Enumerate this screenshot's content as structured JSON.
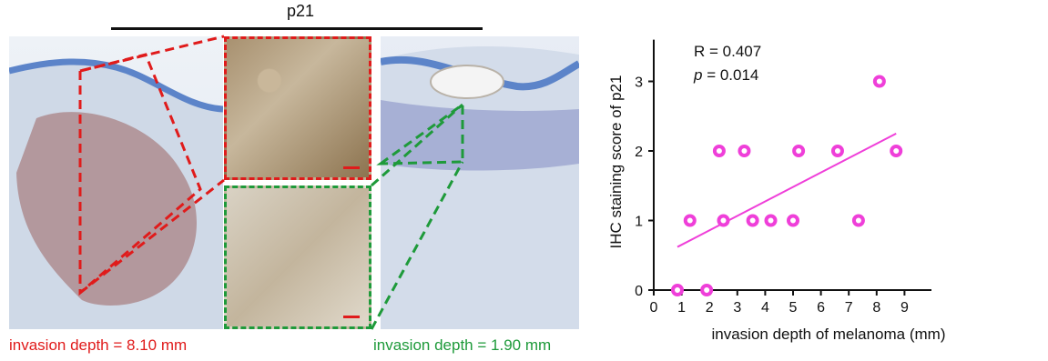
{
  "figure": {
    "marker": "p21",
    "caption_left": "invasion depth = 8.10 mm",
    "caption_right": "invasion depth = 1.90 mm",
    "colors": {
      "red": "#e01b1b",
      "green": "#1e9a3a",
      "series": "#ef3fd9"
    }
  },
  "chart_data": {
    "type": "scatter",
    "xlabel": "invasion depth of melanoma (mm)",
    "ylabel": "IHC staining score of p21",
    "xlim": [
      0,
      10
    ],
    "ylim": [
      0,
      3.6
    ],
    "xticks": [
      0,
      1,
      2,
      3,
      4,
      5,
      6,
      7,
      8,
      9
    ],
    "yticks": [
      0,
      1,
      2,
      3
    ],
    "grid": false,
    "annotations": {
      "r_label": "R = 0.407",
      "p_label_italic": "p",
      "p_label_value": " = 0.014"
    },
    "points": [
      {
        "x": 0.85,
        "y": 0
      },
      {
        "x": 1.3,
        "y": 1
      },
      {
        "x": 1.9,
        "y": 0
      },
      {
        "x": 2.35,
        "y": 2
      },
      {
        "x": 2.5,
        "y": 1
      },
      {
        "x": 3.25,
        "y": 2
      },
      {
        "x": 3.55,
        "y": 1
      },
      {
        "x": 4.2,
        "y": 1
      },
      {
        "x": 5.0,
        "y": 1
      },
      {
        "x": 5.2,
        "y": 2
      },
      {
        "x": 6.6,
        "y": 2
      },
      {
        "x": 7.35,
        "y": 1
      },
      {
        "x": 8.1,
        "y": 3
      },
      {
        "x": 8.7,
        "y": 2
      }
    ],
    "fit_line": [
      {
        "x": 0.85,
        "y": 0.62
      },
      {
        "x": 8.7,
        "y": 2.25
      }
    ],
    "marker_color": "#ef3fd9"
  }
}
